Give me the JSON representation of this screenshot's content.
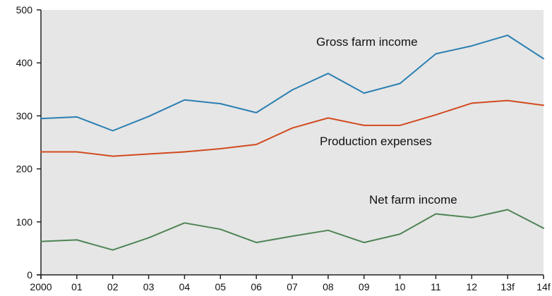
{
  "chart_data": {
    "type": "line",
    "title": "",
    "xlabel": "",
    "ylabel": "",
    "categories": [
      "2000",
      "01",
      "02",
      "03",
      "04",
      "05",
      "06",
      "07",
      "08",
      "09",
      "10",
      "11",
      "12",
      "13f",
      "14f"
    ],
    "ylim": [
      0,
      500
    ],
    "yticks": [
      0,
      100,
      200,
      300,
      400,
      500
    ],
    "grid": false,
    "background": "#e6e6e6",
    "series": [
      {
        "name": "Gross farm income",
        "color": "#2a7fb2",
        "values": [
          295,
          298,
          272,
          299,
          330,
          323,
          306,
          349,
          380,
          343,
          361,
          417,
          432,
          452,
          408
        ]
      },
      {
        "name": "Production expenses",
        "color": "#d24a1e",
        "values": [
          232,
          232,
          224,
          228,
          232,
          238,
          246,
          277,
          296,
          282,
          282,
          302,
          324,
          329,
          320
        ]
      },
      {
        "name": "Net farm income",
        "color": "#4e8455",
        "values": [
          63,
          66,
          47,
          70,
          98,
          86,
          61,
          73,
          84,
          61,
          77,
          115,
          108,
          123,
          88
        ]
      }
    ]
  }
}
